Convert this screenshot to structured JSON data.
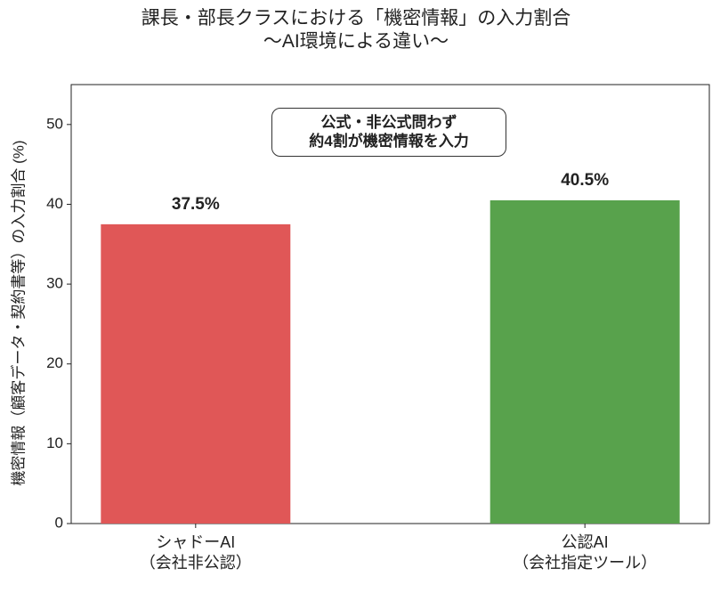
{
  "chart_data": {
    "type": "bar",
    "title": "課長・部長クラスにおける「機密情報」の入力割合\n〜AI環境による違い〜",
    "y_label": "機密情報（顧客データ・契約書等）の入力割合 (%)",
    "annotation": "公式・非公式問わず\n約4割が機密情報を入力",
    "categories": [
      "シャドーAI\n（会社非公認）",
      "公認AI\n（会社指定ツール）"
    ],
    "values": [
      37.5,
      40.5
    ],
    "value_labels": [
      "37.5%",
      "40.5%"
    ],
    "colors": [
      "#e05757",
      "#58a24c"
    ],
    "ylim": [
      0,
      55
    ],
    "yticks": [
      0,
      10,
      20,
      30,
      40,
      50
    ],
    "grid": false
  }
}
